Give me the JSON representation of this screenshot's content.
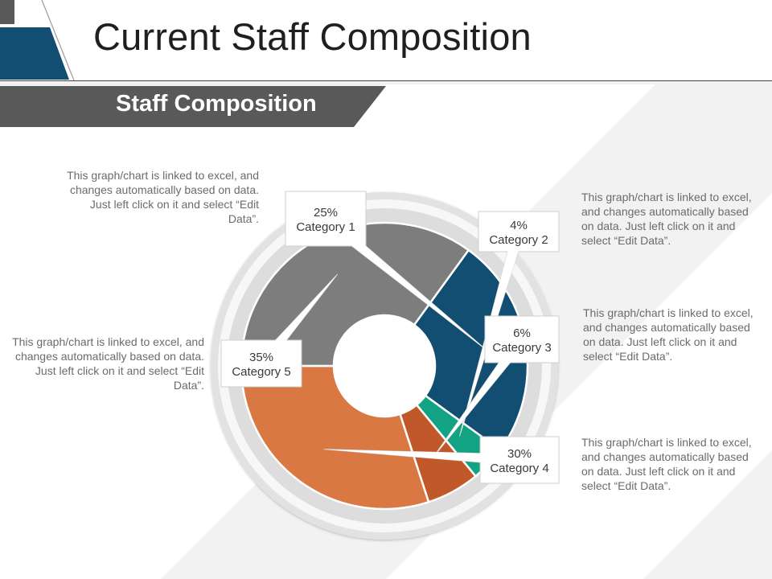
{
  "title": "Current Staff Composition",
  "banner": "Staff Composition",
  "notes": [
    "This graph/chart is linked to excel, and changes automatically based on data. Just left click on it and select “Edit Data”.",
    "This graph/chart is linked to excel, and changes automatically based on data. Just left click on it and select “Edit Data”.",
    "This graph/chart is linked to excel, and changes automatically based on data. Just left click on it and select “Edit Data”.",
    "This graph/chart is linked to excel, and changes automatically based on data. Just left click on it and select “Edit Data”.",
    "This graph/chart is linked to excel, and changes automatically based on data. Just left click on it and select “Edit Data”."
  ],
  "colors": {
    "category_1": "#124e72",
    "category_2": "#11a383",
    "category_3": "#c1582a",
    "category_4": "#d97842",
    "category_5": "#7d7d7d",
    "banner": "#595959",
    "accent_blue": "#124e72"
  },
  "chart_data": {
    "type": "pie",
    "style": "donut",
    "categories": [
      "Category 1",
      "Category 2",
      "Category 3",
      "Category 4",
      "Category 5"
    ],
    "values": [
      25,
      4,
      6,
      30,
      35
    ],
    "value_labels": [
      "25%",
      "4%",
      "6%",
      "30%",
      "35%"
    ],
    "unit": "%"
  }
}
